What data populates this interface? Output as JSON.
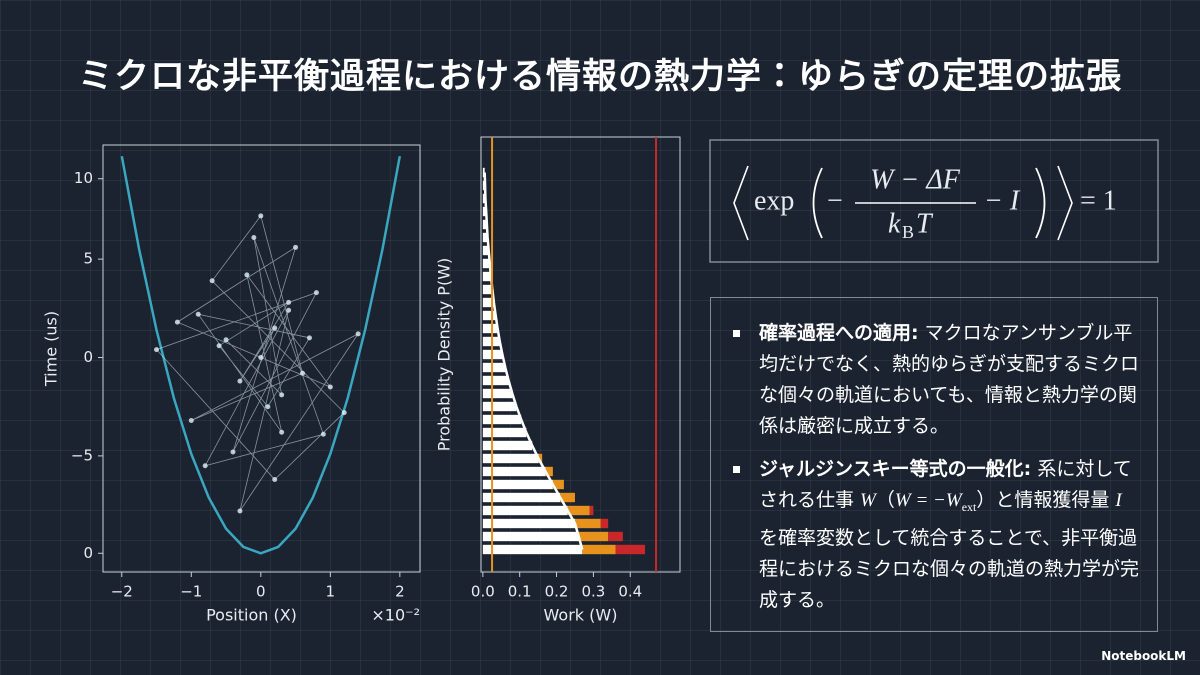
{
  "title": "ミクロな非平衡過程における情報の熱力学：ゆらぎの定理の拡張",
  "chart_data": [
    {
      "type": "line",
      "xlabel": "Position (X)",
      "ylabel": "Time (us)",
      "x_offset_label": "×10⁻²",
      "xlim": [
        -2.27,
        2.29
      ],
      "ylim": [
        -0.5,
        10.9
      ],
      "y2lim": [
        -10.9,
        10.8
      ],
      "xticks": [
        {
          "value": -2,
          "label": "−2"
        },
        {
          "value": -1,
          "label": "−1"
        },
        0,
        1,
        2
      ],
      "yticks": [
        0,
        10
      ],
      "y2ticks": [
        {
          "value": -5,
          "label": "−5"
        },
        0,
        5
      ],
      "series": [
        {
          "color": "#3aa7c0",
          "x": [
            -2,
            -1.75,
            -1.5,
            -1.25,
            -1,
            -0.75,
            -0.5,
            -0.25,
            0,
            0.25,
            0.5,
            0.75,
            1,
            1.25,
            1.5,
            1.75,
            2
          ],
          "values": [
            10.6,
            8.12,
            5.96,
            4.14,
            2.65,
            1.49,
            0.66,
            0.17,
            0,
            0.17,
            0.66,
            1.49,
            2.65,
            4.14,
            5.96,
            8.12,
            10.6
          ]
        },
        {
          "type": "scatter",
          "axis": "y2",
          "color": "#dff1f6",
          "x": [
            0,
            0.2,
            -0.3,
            0.4,
            -0.6,
            0.1,
            0.7,
            -0.9,
            0.3,
            -0.2,
            1.0,
            -1.2,
            0.5,
            -0.4,
            0.8,
            -1.5,
            0.2,
            1.2,
            -0.7,
            0.0,
            0.6,
            -1.0,
            1.4,
            -0.3,
            0.4,
            -0.8,
            0.9,
            -0.1,
            0.3,
            -0.5
          ],
          "values": [
            0,
            1.5,
            -1.2,
            2.8,
            0.6,
            -2.5,
            1.0,
            2.2,
            -3.8,
            4.2,
            -1.5,
            1.8,
            5.6,
            -4.8,
            3.3,
            0.4,
            -6.2,
            -2.8,
            3.9,
            7.2,
            -0.8,
            -3.2,
            1.2,
            -7.8,
            2.4,
            -5.5,
            -3.9,
            6.1,
            -1.9,
            0.9
          ]
        }
      ]
    },
    {
      "type": "barh",
      "stacked": true,
      "xlabel": "Work (W)",
      "ylabel": "Probability Density P(W)",
      "xlim": [
        -0.005,
        0.535
      ],
      "xticks": [
        {
          "value": 0,
          "label": "0.0"
        },
        {
          "value": 0.1,
          "label": "0.1"
        },
        {
          "value": 0.2,
          "label": "0.2"
        },
        {
          "value": 0.3,
          "label": "0.3"
        },
        {
          "value": 0.4,
          "label": "0.4"
        }
      ],
      "categories": [
        null,
        null,
        null,
        null,
        null,
        null,
        null,
        null,
        null,
        null,
        null,
        null,
        null,
        null,
        null,
        null,
        null,
        null,
        null,
        null,
        null,
        null,
        null,
        null,
        null,
        null,
        null,
        null,
        null,
        null
      ],
      "series": [
        {
          "color": "#ffffff",
          "values": [
            0.005,
            0.006,
            0.007,
            0.009,
            0.011,
            0.013,
            0.016,
            0.019,
            0.022,
            0.026,
            0.03,
            0.035,
            0.04,
            0.046,
            0.053,
            0.061,
            0.07,
            0.08,
            0.091,
            0.104,
            0.118,
            0.134,
            0.151,
            0.17,
            0.19,
            0.21,
            0.23,
            0.25,
            0.26,
            0.27
          ]
        },
        {
          "color": "#e8921e",
          "values": [
            0,
            0,
            0,
            0,
            0,
            0,
            0,
            0,
            0,
            0,
            0,
            0,
            0,
            0,
            0,
            0,
            0,
            0,
            0,
            0,
            0,
            0,
            0.01,
            0.02,
            0.03,
            0.04,
            0.06,
            0.07,
            0.08,
            0.09
          ]
        },
        {
          "color": "#c8282a",
          "values": [
            0,
            0,
            0,
            0,
            0,
            0,
            0,
            0,
            0,
            0,
            0,
            0,
            0,
            0,
            0,
            0,
            0,
            0,
            0,
            0,
            0,
            0,
            0,
            0,
            0,
            0,
            0.01,
            0.02,
            0.04,
            0.08
          ]
        }
      ],
      "curve": true,
      "vlines": [
        {
          "value": 0.025,
          "color": "#e8921e"
        },
        {
          "value": 0.47,
          "color": "#c8282a"
        }
      ]
    }
  ],
  "formula": {
    "fn": "exp",
    "sign": "−",
    "numerator": "W − ΔF",
    "denominator": {
      "base": "k",
      "sub": "B",
      "rest": "T"
    },
    "tail": "− I",
    "rhs": "= 1"
  },
  "bullets": [
    {
      "head": "確率過程への適用:",
      "body": [
        "マクロなアンサンブル平均だけでなく、熱的ゆらぎが支配するミクロな個々の軌道においても、情報と熱力学の関係は厳密に成立する。"
      ]
    },
    {
      "head": "ジャルジンスキー等式の一般化:",
      "body": [
        "系に対してされる仕事 ",
        "W",
        "（",
        "W = −W",
        "ext",
        "）と情報獲得量 ",
        "I",
        " を確率変数として統合することで、非平衡過程におけるミクロな個々の軌道の熱力学が完成する。"
      ]
    }
  ],
  "logo": "NotebookLM"
}
